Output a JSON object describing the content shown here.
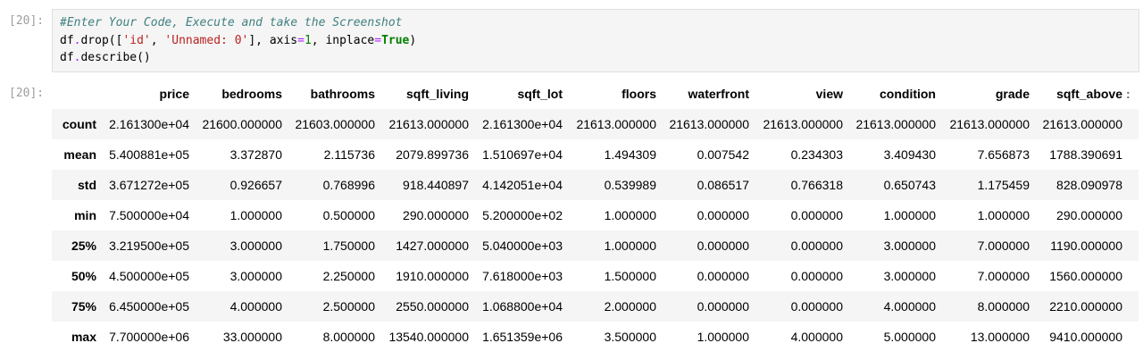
{
  "cell": {
    "in_prompt": "[20]:",
    "out_prompt": "[20]:",
    "code": {
      "comment": "#Enter Your Code, Execute and take the Screenshot",
      "line2": {
        "obj": "df",
        "dot": ".",
        "method": "drop",
        "open": "([",
        "str1": "'id'",
        "comma1": ", ",
        "str2": "'Unnamed: 0'",
        "close_list": "], axis",
        "eq1": "=",
        "num": "1",
        "comma2": ", inplace",
        "eq2": "=",
        "kw": "True",
        "close": ")"
      },
      "line3": {
        "obj": "df",
        "dot": ".",
        "method": "describe",
        "call": "()"
      }
    }
  },
  "table": {
    "columns": [
      "price",
      "bedrooms",
      "bathrooms",
      "sqft_living",
      "sqft_lot",
      "floors",
      "waterfront",
      "view",
      "condition",
      "grade",
      "sqft_above"
    ],
    "more_indicator": ":",
    "rows": [
      {
        "index": "count",
        "values": [
          "2.161300e+04",
          "21600.000000",
          "21603.000000",
          "21613.000000",
          "2.161300e+04",
          "21613.000000",
          "21613.000000",
          "21613.000000",
          "21613.000000",
          "21613.000000",
          "21613.000000"
        ]
      },
      {
        "index": "mean",
        "values": [
          "5.400881e+05",
          "3.372870",
          "2.115736",
          "2079.899736",
          "1.510697e+04",
          "1.494309",
          "0.007542",
          "0.234303",
          "3.409430",
          "7.656873",
          "1788.390691"
        ]
      },
      {
        "index": "std",
        "values": [
          "3.671272e+05",
          "0.926657",
          "0.768996",
          "918.440897",
          "4.142051e+04",
          "0.539989",
          "0.086517",
          "0.766318",
          "0.650743",
          "1.175459",
          "828.090978"
        ]
      },
      {
        "index": "min",
        "values": [
          "7.500000e+04",
          "1.000000",
          "0.500000",
          "290.000000",
          "5.200000e+02",
          "1.000000",
          "0.000000",
          "0.000000",
          "1.000000",
          "1.000000",
          "290.000000"
        ]
      },
      {
        "index": "25%",
        "values": [
          "3.219500e+05",
          "3.000000",
          "1.750000",
          "1427.000000",
          "5.040000e+03",
          "1.000000",
          "0.000000",
          "0.000000",
          "3.000000",
          "7.000000",
          "1190.000000"
        ]
      },
      {
        "index": "50%",
        "values": [
          "4.500000e+05",
          "3.000000",
          "2.250000",
          "1910.000000",
          "7.618000e+03",
          "1.500000",
          "0.000000",
          "0.000000",
          "3.000000",
          "7.000000",
          "1560.000000"
        ]
      },
      {
        "index": "75%",
        "values": [
          "6.450000e+05",
          "4.000000",
          "2.500000",
          "2550.000000",
          "1.068800e+04",
          "2.000000",
          "0.000000",
          "0.000000",
          "4.000000",
          "8.000000",
          "2210.000000"
        ]
      },
      {
        "index": "max",
        "values": [
          "7.700000e+06",
          "33.000000",
          "8.000000",
          "13540.000000",
          "1.651359e+06",
          "3.500000",
          "1.000000",
          "4.000000",
          "5.000000",
          "13.000000",
          "9410.000000"
        ]
      }
    ]
  }
}
